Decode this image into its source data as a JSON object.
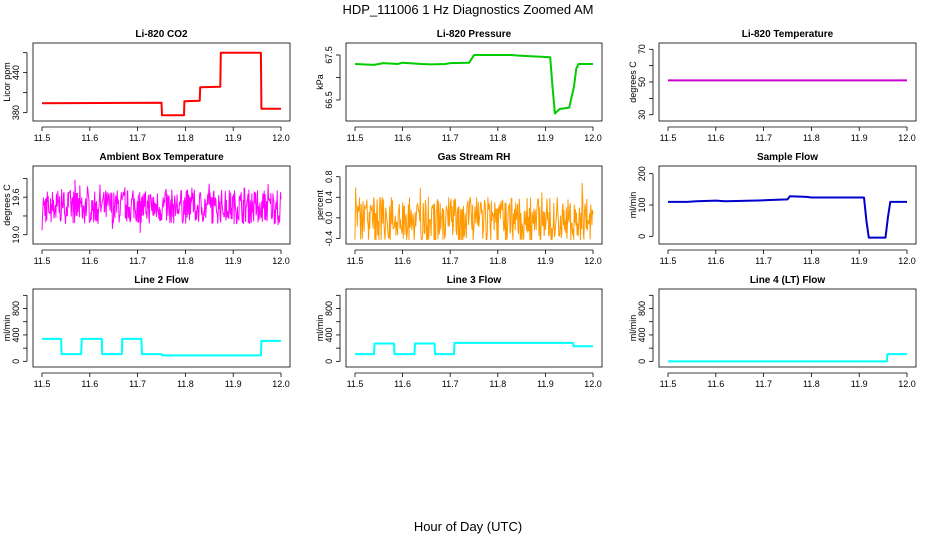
{
  "figure": {
    "title": "HDP_111006  1 Hz Diagnostics Zoomed AM",
    "xlabel": "Hour of Day (UTC)"
  },
  "chart_data": [
    {
      "type": "line",
      "title": "Li-820 CO2",
      "ylabel": "Licor ppm",
      "color": "#ff0000",
      "xlim": [
        11.5,
        12.0
      ],
      "xticks": [
        11.5,
        11.6,
        11.7,
        11.8,
        11.9,
        12.0
      ],
      "ylim": [
        372,
        480
      ],
      "yticks": [
        380,
        410,
        440,
        470
      ],
      "ytick_labels": [
        "380",
        "",
        "440",
        ""
      ],
      "series": [
        {
          "x": [
            11.5,
            11.75,
            11.751,
            11.797,
            11.798,
            11.83,
            11.831,
            11.873,
            11.874,
            11.958,
            11.959,
            12.0
          ],
          "y": [
            394,
            395,
            376,
            376,
            397,
            398,
            418,
            419,
            470,
            470,
            386,
            386
          ]
        }
      ]
    },
    {
      "type": "line",
      "title": "Li-820 Pressure",
      "ylabel": "kPa",
      "color": "#00cc00",
      "xlim": [
        11.5,
        12.0
      ],
      "xticks": [
        11.5,
        11.6,
        11.7,
        11.8,
        11.9,
        12.0
      ],
      "ylim": [
        66.1,
        67.7
      ],
      "yticks": [
        66.5,
        67.0,
        67.5
      ],
      "ytick_labels": [
        "66.5",
        "",
        "67.5"
      ],
      "series": [
        {
          "x": [
            11.5,
            11.54,
            11.56,
            11.59,
            11.6,
            11.64,
            11.66,
            11.69,
            11.7,
            11.74,
            11.75,
            11.83,
            11.84,
            11.91,
            11.915,
            11.92,
            11.925,
            11.93,
            11.95,
            11.96,
            11.965,
            11.97,
            11.98,
            12.0
          ],
          "y": [
            67.3,
            67.28,
            67.32,
            67.3,
            67.33,
            67.3,
            67.29,
            67.3,
            67.32,
            67.33,
            67.5,
            67.5,
            67.49,
            67.45,
            66.8,
            66.2,
            66.25,
            66.3,
            66.33,
            66.8,
            67.2,
            67.3,
            67.3,
            67.3
          ]
        }
      ]
    },
    {
      "type": "line",
      "title": "Li-820 Temperature",
      "ylabel": "degrees C",
      "color": "#cc00cc",
      "xlim": [
        11.5,
        12.0
      ],
      "xticks": [
        11.5,
        11.6,
        11.7,
        11.8,
        11.9,
        12.0
      ],
      "ylim": [
        28,
        72
      ],
      "yticks": [
        30,
        40,
        50,
        60,
        70
      ],
      "ytick_labels": [
        "30",
        "",
        "50",
        "",
        "70"
      ],
      "series": [
        {
          "x": [
            11.5,
            12.0
          ],
          "y": [
            51,
            51
          ]
        }
      ]
    },
    {
      "type": "line",
      "title": "Ambient Box Temperature",
      "ylabel": "degrees C",
      "color": "#ff00ff",
      "noise": true,
      "noise_seed": 7,
      "noise_points": 500,
      "xlim": [
        11.5,
        12.0
      ],
      "xticks": [
        11.5,
        11.6,
        11.7,
        11.8,
        11.9,
        12.0
      ],
      "ylim": [
        18.9,
        20.05
      ],
      "yticks": [
        19.0,
        19.3,
        19.6,
        19.9
      ],
      "ytick_labels": [
        "19.0",
        "",
        "19.6",
        ""
      ],
      "series": [
        {
          "center": 19.45,
          "spread": 0.55
        }
      ]
    },
    {
      "type": "line",
      "title": "Gas Stream RH",
      "ylabel": "percent",
      "color": "#ff9900",
      "noise": true,
      "noise_seed": 13,
      "noise_points": 420,
      "xlim": [
        11.5,
        12.0
      ],
      "xticks": [
        11.5,
        11.6,
        11.7,
        11.8,
        11.9,
        12.0
      ],
      "ylim": [
        -0.45,
        0.95
      ],
      "yticks": [
        -0.4,
        0.0,
        0.4,
        0.8
      ],
      "ytick_labels": [
        "-0.4",
        "0.0",
        "0.4",
        "0.8"
      ],
      "series": [
        {
          "center": -0.05,
          "spread": 0.9
        }
      ]
    },
    {
      "type": "line",
      "title": "Sample Flow",
      "ylabel": "ml/min",
      "color": "#0000cc",
      "xlim": [
        11.5,
        12.0
      ],
      "xticks": [
        11.5,
        11.6,
        11.7,
        11.8,
        11.9,
        12.0
      ],
      "ylim": [
        -15,
        215
      ],
      "yticks": [
        0,
        100,
        200
      ],
      "ytick_labels": [
        "0",
        "100",
        "200"
      ],
      "series": [
        {
          "x": [
            11.5,
            11.54,
            11.56,
            11.6,
            11.62,
            11.7,
            11.75,
            11.755,
            11.79,
            11.8,
            11.91,
            11.915,
            11.92,
            11.955,
            11.96,
            11.965,
            12.0
          ],
          "y": [
            110,
            110,
            112,
            114,
            112,
            115,
            118,
            128,
            126,
            124,
            124,
            50,
            -4,
            -4,
            60,
            110,
            110
          ]
        }
      ]
    },
    {
      "type": "line",
      "title": "Line 2 Flow",
      "ylabel": "ml/min",
      "color": "#00ffff",
      "xlim": [
        11.5,
        12.0
      ],
      "xticks": [
        11.5,
        11.6,
        11.7,
        11.8,
        11.9,
        12.0
      ],
      "ylim": [
        -40,
        1050
      ],
      "yticks": [
        0,
        200,
        400,
        600,
        800,
        1000
      ],
      "ytick_labels": [
        "0",
        "",
        "400",
        "",
        "800",
        ""
      ],
      "series": [
        {
          "x": [
            11.5,
            11.54,
            11.541,
            11.582,
            11.583,
            11.625,
            11.626,
            11.667,
            11.668,
            11.708,
            11.709,
            11.75,
            11.751,
            11.958,
            11.959,
            12.0
          ],
          "y": [
            340,
            340,
            110,
            110,
            340,
            340,
            110,
            110,
            340,
            340,
            110,
            110,
            90,
            90,
            310,
            310
          ]
        }
      ]
    },
    {
      "type": "line",
      "title": "Line 3 Flow",
      "ylabel": "ml/min",
      "color": "#00ffff",
      "xlim": [
        11.5,
        12.0
      ],
      "xticks": [
        11.5,
        11.6,
        11.7,
        11.8,
        11.9,
        12.0
      ],
      "ylim": [
        -40,
        1050
      ],
      "yticks": [
        0,
        200,
        400,
        600,
        800,
        1000
      ],
      "ytick_labels": [
        "0",
        "",
        "400",
        "",
        "800",
        ""
      ],
      "series": [
        {
          "x": [
            11.5,
            11.54,
            11.541,
            11.582,
            11.583,
            11.625,
            11.626,
            11.667,
            11.668,
            11.708,
            11.709,
            11.958,
            11.959,
            12.0
          ],
          "y": [
            110,
            110,
            270,
            270,
            110,
            110,
            270,
            270,
            110,
            110,
            280,
            280,
            230,
            230
          ]
        }
      ]
    },
    {
      "type": "line",
      "title": "Line 4 (LT) Flow",
      "ylabel": "ml/min",
      "color": "#00ffff",
      "xlim": [
        11.5,
        12.0
      ],
      "xticks": [
        11.5,
        11.6,
        11.7,
        11.8,
        11.9,
        12.0
      ],
      "ylim": [
        -40,
        1050
      ],
      "yticks": [
        0,
        200,
        400,
        600,
        800,
        1000
      ],
      "ytick_labels": [
        "0",
        "",
        "400",
        "",
        "800",
        ""
      ],
      "series": [
        {
          "x": [
            11.5,
            11.958,
            11.959,
            12.0
          ],
          "y": [
            0,
            0,
            110,
            110
          ]
        }
      ]
    }
  ]
}
